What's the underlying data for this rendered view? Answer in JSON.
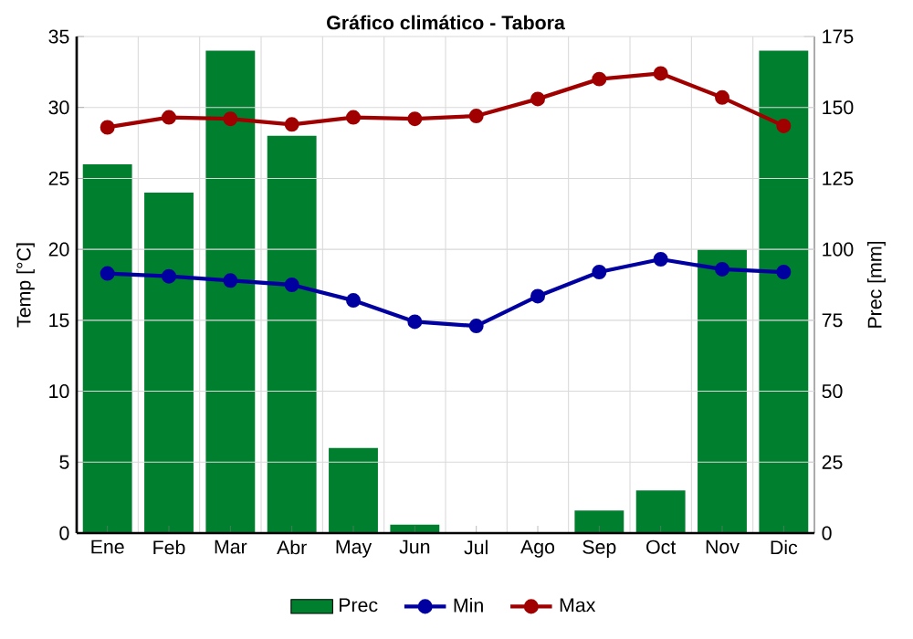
{
  "chart_data": {
    "type": "line",
    "title": "Gráfico climático - Tabora",
    "ylabel": "Temp [°C]",
    "y2label": "Prec [mm]",
    "categories": [
      "Ene",
      "Feb",
      "Mar",
      "Abr",
      "May",
      "Jun",
      "Jul",
      "Ago",
      "Sep",
      "Oct",
      "Nov",
      "Dic"
    ],
    "series": [
      {
        "name": "Prec",
        "type": "bar",
        "axis": "y2",
        "color": "#007f2f",
        "values": [
          130,
          120,
          170,
          140,
          30,
          3,
          0,
          0,
          8,
          15,
          100,
          170
        ]
      },
      {
        "name": "Min",
        "color": "#0000a0",
        "marker": "circle",
        "values": [
          18.3,
          18.1,
          17.8,
          17.5,
          16.4,
          14.9,
          14.6,
          16.7,
          18.4,
          19.3,
          18.6,
          18.4
        ]
      },
      {
        "name": "Max",
        "color": "#a00000",
        "marker": "circle",
        "values": [
          28.6,
          29.3,
          29.2,
          28.8,
          29.3,
          29.2,
          29.4,
          30.6,
          32.0,
          32.4,
          30.7,
          28.7
        ]
      }
    ],
    "ylim": [
      0,
      35
    ],
    "yticks": [
      0,
      5,
      10,
      15,
      20,
      25,
      30,
      35
    ],
    "y2lim": [
      0,
      175
    ],
    "y2ticks": [
      0,
      25,
      50,
      75,
      100,
      125,
      150,
      175
    ],
    "grid": true,
    "legend": "bottom"
  }
}
